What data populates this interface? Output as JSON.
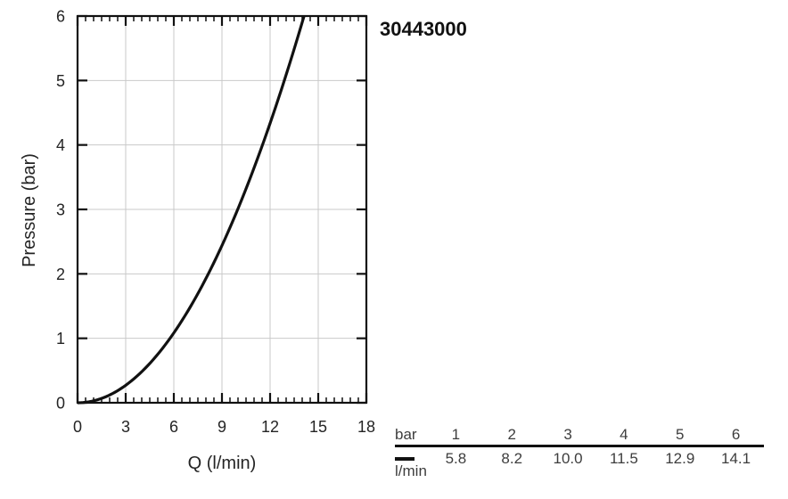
{
  "product_code": "30443000",
  "chart_data": {
    "type": "line",
    "title": "",
    "xlabel": "Q (l/min)",
    "ylabel": "Pressure (bar)",
    "xlim": [
      0,
      18
    ],
    "ylim": [
      0,
      6
    ],
    "x_major_ticks": [
      0,
      3,
      6,
      9,
      12,
      15,
      18
    ],
    "x_minor_step": 0.5,
    "y_major_ticks": [
      0,
      1,
      2,
      3,
      4,
      5,
      6
    ],
    "grid": true,
    "legend_position": "table-bottom-right",
    "series": [
      {
        "name": "l/min",
        "style": "solid-black",
        "points": [
          [
            0,
            0
          ],
          [
            5.8,
            1
          ],
          [
            8.2,
            2
          ],
          [
            10.0,
            3
          ],
          [
            11.5,
            4
          ],
          [
            12.9,
            5
          ],
          [
            14.1,
            6
          ]
        ]
      }
    ]
  },
  "flow_table": {
    "row1_label": "bar",
    "row2_label": "l/min",
    "pressures": [
      "1",
      "2",
      "3",
      "4",
      "5",
      "6"
    ],
    "flows": [
      "5.8",
      "8.2",
      "10.0",
      "11.5",
      "12.9",
      "14.1"
    ]
  }
}
